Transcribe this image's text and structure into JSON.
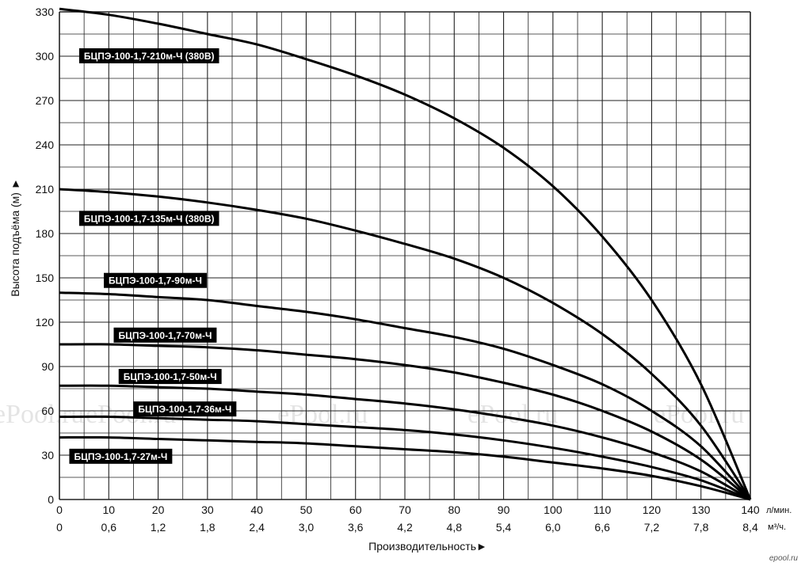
{
  "chart_data": {
    "type": "line",
    "xlabel": "Производительность►",
    "ylabel": "Высота подъёма (м) ►",
    "x_unit_primary": "л/мин.",
    "x_unit_secondary": "м³/ч.",
    "xlim": [
      0,
      140
    ],
    "ylim": [
      0,
      330
    ],
    "x_ticks": [
      0,
      10,
      20,
      30,
      40,
      50,
      60,
      70,
      80,
      90,
      100,
      110,
      120,
      130,
      140
    ],
    "x_ticks_secondary": [
      "0",
      "0,6",
      "1,2",
      "1,8",
      "2,4",
      "3,0",
      "3,6",
      "4,2",
      "4,8",
      "5,4",
      "6,0",
      "6,6",
      "7,2",
      "7,8",
      "8,4"
    ],
    "y_ticks": [
      0,
      30,
      60,
      90,
      120,
      150,
      180,
      210,
      240,
      270,
      300,
      330
    ],
    "grid": true,
    "x_minor_step": 5,
    "y_minor_step": 15,
    "series": [
      {
        "name": "БЦПЭ-100-1,7-210м-Ч (380В)",
        "points": [
          [
            0,
            332
          ],
          [
            10,
            328
          ],
          [
            20,
            322
          ],
          [
            30,
            315
          ],
          [
            40,
            308
          ],
          [
            50,
            298
          ],
          [
            60,
            287
          ],
          [
            70,
            274
          ],
          [
            80,
            258
          ],
          [
            90,
            238
          ],
          [
            100,
            212
          ],
          [
            110,
            178
          ],
          [
            120,
            135
          ],
          [
            130,
            78
          ],
          [
            140,
            0
          ]
        ]
      },
      {
        "name": "БЦПЭ-100-1,7-135м-Ч (380В)",
        "points": [
          [
            0,
            210
          ],
          [
            10,
            208
          ],
          [
            20,
            205
          ],
          [
            30,
            201
          ],
          [
            40,
            196
          ],
          [
            50,
            190
          ],
          [
            60,
            182
          ],
          [
            70,
            173
          ],
          [
            80,
            163
          ],
          [
            90,
            150
          ],
          [
            100,
            133
          ],
          [
            110,
            112
          ],
          [
            120,
            85
          ],
          [
            130,
            50
          ],
          [
            140,
            0
          ]
        ]
      },
      {
        "name": "БЦПЭ-100-1,7-90м-Ч",
        "points": [
          [
            0,
            140
          ],
          [
            10,
            139
          ],
          [
            20,
            137
          ],
          [
            30,
            135
          ],
          [
            40,
            131
          ],
          [
            50,
            127
          ],
          [
            60,
            122
          ],
          [
            70,
            116
          ],
          [
            80,
            110
          ],
          [
            90,
            102
          ],
          [
            100,
            91
          ],
          [
            110,
            78
          ],
          [
            120,
            60
          ],
          [
            130,
            36
          ],
          [
            140,
            0
          ]
        ]
      },
      {
        "name": "БЦПЭ-100-1,7-70м-Ч",
        "points": [
          [
            0,
            105
          ],
          [
            10,
            105
          ],
          [
            20,
            104
          ],
          [
            30,
            103
          ],
          [
            40,
            101
          ],
          [
            50,
            98
          ],
          [
            60,
            95
          ],
          [
            70,
            91
          ],
          [
            80,
            86
          ],
          [
            90,
            79
          ],
          [
            100,
            71
          ],
          [
            110,
            60
          ],
          [
            120,
            46
          ],
          [
            130,
            27
          ],
          [
            140,
            0
          ]
        ]
      },
      {
        "name": "БЦПЭ-100-1,7-50м-Ч",
        "points": [
          [
            0,
            77
          ],
          [
            10,
            77
          ],
          [
            20,
            76
          ],
          [
            30,
            75
          ],
          [
            40,
            73
          ],
          [
            50,
            71
          ],
          [
            60,
            68
          ],
          [
            70,
            65
          ],
          [
            80,
            61
          ],
          [
            90,
            56
          ],
          [
            100,
            50
          ],
          [
            110,
            42
          ],
          [
            120,
            32
          ],
          [
            130,
            19
          ],
          [
            140,
            0
          ]
        ]
      },
      {
        "name": "БЦПЭ-100-1,7-36м-Ч",
        "points": [
          [
            0,
            56
          ],
          [
            10,
            56
          ],
          [
            20,
            55
          ],
          [
            30,
            54
          ],
          [
            40,
            53
          ],
          [
            50,
            51
          ],
          [
            60,
            49
          ],
          [
            70,
            47
          ],
          [
            80,
            44
          ],
          [
            90,
            40
          ],
          [
            100,
            35
          ],
          [
            110,
            29
          ],
          [
            120,
            22
          ],
          [
            130,
            13
          ],
          [
            140,
            0
          ]
        ]
      },
      {
        "name": "БЦПЭ-100-1,7-27м-Ч",
        "points": [
          [
            0,
            42
          ],
          [
            10,
            42
          ],
          [
            20,
            41
          ],
          [
            30,
            40
          ],
          [
            40,
            39
          ],
          [
            50,
            38
          ],
          [
            60,
            36
          ],
          [
            70,
            34
          ],
          [
            80,
            32
          ],
          [
            90,
            29
          ],
          [
            100,
            25
          ],
          [
            110,
            21
          ],
          [
            120,
            16
          ],
          [
            130,
            9
          ],
          [
            140,
            0
          ]
        ]
      }
    ],
    "labels": [
      {
        "series": 0,
        "text": "БЦПЭ-100-1,7-210м-Ч (380В)",
        "at": [
          4,
          300
        ]
      },
      {
        "series": 1,
        "text": "БЦПЭ-100-1,7-135м-Ч (380В)",
        "at": [
          4,
          190
        ]
      },
      {
        "series": 2,
        "text": "БЦПЭ-100-1,7-90м-Ч",
        "at": [
          9,
          148
        ]
      },
      {
        "series": 3,
        "text": "БЦПЭ-100-1,7-70м-Ч",
        "at": [
          11,
          111
        ]
      },
      {
        "series": 4,
        "text": "БЦПЭ-100-1,7-50м-Ч",
        "at": [
          12,
          83
        ]
      },
      {
        "series": 5,
        "text": "БЦПЭ-100-1,7-36м-Ч",
        "at": [
          15,
          61
        ]
      },
      {
        "series": 6,
        "text": "БЦПЭ-100-1,7-27м-Ч",
        "at": [
          2,
          29
        ]
      }
    ],
    "watermark": "ePool.ru",
    "corner_mark": "epool.ru"
  }
}
